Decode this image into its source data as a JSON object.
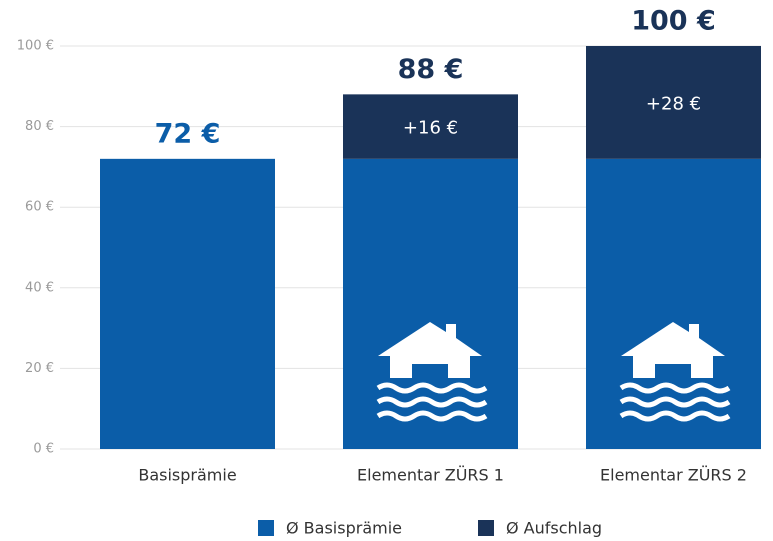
{
  "chart_data": {
    "type": "stacked_bar",
    "categories": [
      "Basisprämie",
      "Elementar ZÜRS 1",
      "Elementar ZÜRS 2"
    ],
    "series": [
      {
        "name": "Ø Basisprämie",
        "color": "#0b5da8",
        "values": [
          72,
          72,
          72
        ]
      },
      {
        "name": "Ø Aufschlag",
        "color": "#1a3358",
        "values": [
          null,
          16,
          28
        ],
        "value_labels": [
          null,
          "+16 €",
          "+28 €"
        ]
      }
    ],
    "total_labels": [
      "72 €",
      "88 €",
      "100 €"
    ],
    "ylim": [
      0,
      100
    ],
    "yticks": [
      {
        "value": 0,
        "label": "0 €"
      },
      {
        "value": 20,
        "label": "20 €"
      },
      {
        "value": 40,
        "label": "40 €"
      },
      {
        "value": 60,
        "label": "60 €"
      },
      {
        "value": 80,
        "label": "80 €"
      },
      {
        "value": 100,
        "label": "100 €"
      }
    ],
    "grid": true
  }
}
